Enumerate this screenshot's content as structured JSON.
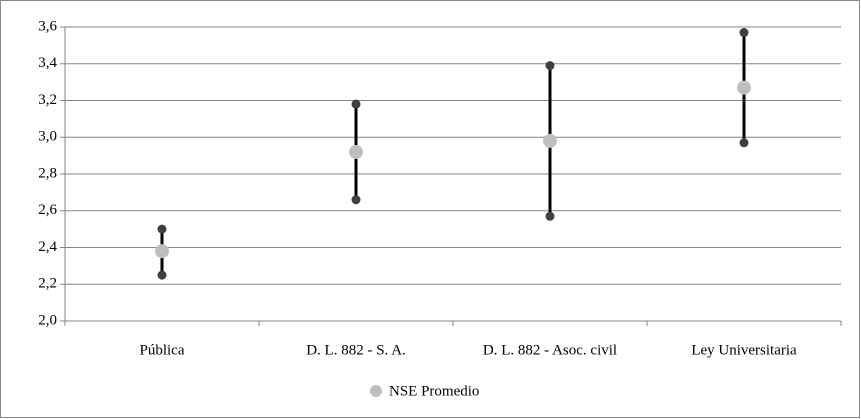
{
  "chart_data": {
    "type": "range",
    "categories": [
      "Pública",
      "D. L. 882 - S. A.",
      "D. L. 882 - Asoc. civil",
      "Ley Universitaria"
    ],
    "high_values": [
      2.5,
      3.18,
      3.39,
      3.57
    ],
    "low_values": [
      2.25,
      2.66,
      2.57,
      2.97
    ],
    "range_color": "#404040",
    "series": [
      {
        "name": "NSE Promedio",
        "color": "#bfbfbf",
        "values": [
          2.38,
          2.92,
          2.98,
          3.27
        ]
      }
    ],
    "ylim": [
      2.0,
      3.6
    ],
    "yticks": [
      {
        "value": 2.0,
        "label": "2,0"
      },
      {
        "value": 2.2,
        "label": "2,2"
      },
      {
        "value": 2.4,
        "label": "2,4"
      },
      {
        "value": 2.6,
        "label": "2,6"
      },
      {
        "value": 2.8,
        "label": "2,8"
      },
      {
        "value": 3.0,
        "label": "3,0"
      },
      {
        "value": 3.2,
        "label": "3,2"
      },
      {
        "value": 3.4,
        "label": "3,4"
      },
      {
        "value": 3.6,
        "label": "3,6"
      }
    ],
    "grid": true,
    "legend": "bottom"
  }
}
